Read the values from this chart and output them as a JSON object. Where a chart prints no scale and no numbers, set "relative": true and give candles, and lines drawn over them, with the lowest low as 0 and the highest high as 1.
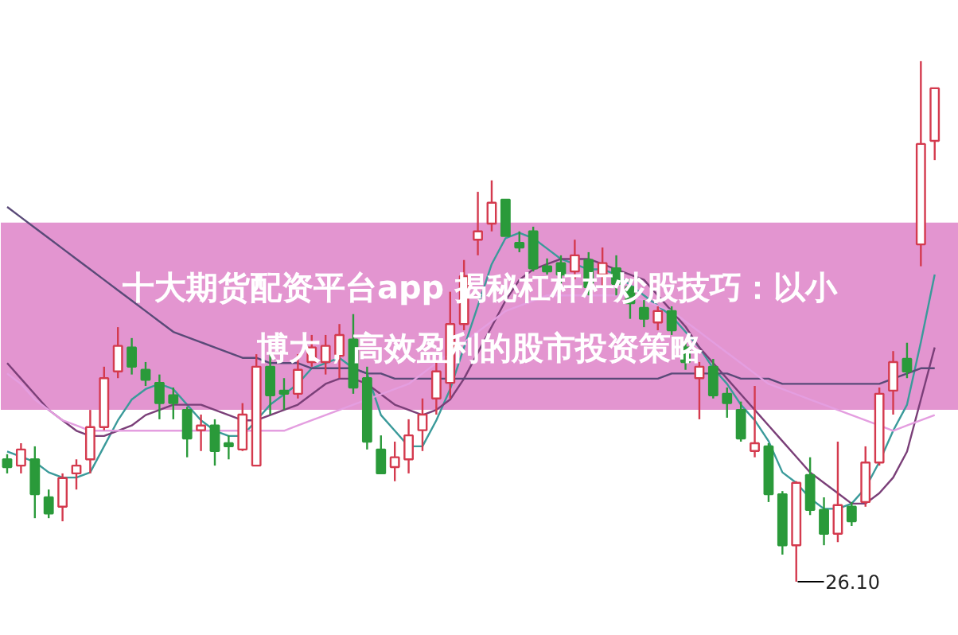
{
  "chart_data": {
    "type": "candlestick",
    "title": "十大期货配资平台app 揭秘杠杆杆炒股技巧：以小博大，高效盈利的股市投资策略",
    "relative": true,
    "categories": [
      null,
      null,
      null,
      null,
      null,
      null,
      null,
      null,
      null,
      null,
      null,
      null,
      null,
      null,
      null,
      null,
      null,
      null,
      null,
      null,
      null,
      null,
      null,
      null,
      null,
      null,
      null,
      null,
      null,
      null,
      null,
      null,
      null,
      null,
      null,
      null,
      null,
      null,
      null,
      null,
      null,
      null,
      null,
      null,
      null,
      null,
      null,
      null,
      null,
      null,
      null,
      null,
      null,
      null,
      null,
      null,
      null,
      null,
      null,
      null,
      null,
      null,
      null,
      null,
      null,
      null,
      null,
      null
    ],
    "ohlc": [
      [
        0.235,
        0.245,
        0.208,
        0.22
      ],
      [
        0.223,
        0.266,
        0.208,
        0.254
      ],
      [
        0.235,
        0.26,
        0.122,
        0.168
      ],
      [
        0.162,
        0.177,
        0.122,
        0.131
      ],
      [
        0.144,
        0.208,
        0.116,
        0.199
      ],
      [
        0.208,
        0.235,
        0.177,
        0.223
      ],
      [
        0.235,
        0.33,
        0.208,
        0.297
      ],
      [
        0.297,
        0.413,
        0.291,
        0.391
      ],
      [
        0.404,
        0.489,
        0.391,
        0.453
      ],
      [
        0.45,
        0.468,
        0.398,
        0.413
      ],
      [
        0.407,
        0.422,
        0.376,
        0.388
      ],
      [
        0.382,
        0.398,
        0.312,
        0.343
      ],
      [
        0.358,
        0.373,
        0.312,
        0.343
      ],
      [
        0.33,
        0.336,
        0.239,
        0.275
      ],
      [
        0.291,
        0.321,
        0.251,
        0.3
      ],
      [
        0.3,
        0.312,
        0.223,
        0.251
      ],
      [
        0.266,
        0.281,
        0.235,
        0.26
      ],
      [
        0.254,
        0.343,
        0.251,
        0.321
      ],
      [
        0.223,
        0.437,
        0.223,
        0.413
      ],
      [
        0.413,
        0.443,
        0.321,
        0.358
      ],
      [
        0.367,
        0.391,
        0.33,
        0.361
      ],
      [
        0.361,
        0.437,
        0.352,
        0.407
      ],
      [
        0.422,
        0.474,
        0.413,
        0.45
      ],
      [
        0.422,
        0.474,
        0.398,
        0.453
      ],
      [
        0.434,
        0.495,
        0.391,
        0.474
      ],
      [
        0.465,
        0.514,
        0.361,
        0.373
      ],
      [
        0.391,
        0.413,
        0.254,
        0.269
      ],
      [
        0.254,
        0.281,
        0.208,
        0.208
      ],
      [
        0.22,
        0.269,
        0.193,
        0.239
      ],
      [
        0.235,
        0.312,
        0.208,
        0.281
      ],
      [
        0.291,
        0.352,
        0.251,
        0.321
      ],
      [
        0.352,
        0.422,
        0.321,
        0.404
      ],
      [
        0.382,
        0.557,
        0.352,
        0.495
      ],
      [
        0.495,
        0.618,
        0.483,
        0.587
      ],
      [
        0.657,
        0.749,
        0.627,
        0.673
      ],
      [
        0.688,
        0.771,
        0.673,
        0.728
      ],
      [
        0.734,
        0.734,
        0.664,
        0.664
      ],
      [
        0.651,
        0.673,
        0.633,
        0.642
      ],
      [
        0.673,
        0.682,
        0.596,
        0.602
      ],
      [
        0.606,
        0.621,
        0.59,
        0.596
      ],
      [
        0.612,
        0.627,
        0.572,
        0.59
      ],
      [
        0.596,
        0.657,
        0.581,
        0.627
      ],
      [
        0.618,
        0.633,
        0.55,
        0.566
      ],
      [
        0.59,
        0.642,
        0.566,
        0.612
      ],
      [
        0.602,
        0.627,
        0.55,
        0.572
      ],
      [
        0.566,
        0.581,
        0.505,
        0.535
      ],
      [
        0.526,
        0.541,
        0.489,
        0.505
      ],
      [
        0.498,
        0.529,
        0.483,
        0.52
      ],
      [
        0.52,
        0.529,
        0.474,
        0.483
      ],
      [
        0.45,
        0.465,
        0.407,
        0.422
      ],
      [
        0.391,
        0.422,
        0.312,
        0.413
      ],
      [
        0.413,
        0.428,
        0.352,
        0.358
      ],
      [
        0.361,
        0.373,
        0.315,
        0.343
      ],
      [
        0.33,
        0.346,
        0.269,
        0.275
      ],
      [
        0.251,
        0.376,
        0.239,
        0.266
      ],
      [
        0.26,
        0.266,
        0.153,
        0.168
      ],
      [
        0.168,
        0.174,
        0.052,
        0.07
      ],
      [
        0.07,
        0.193,
        0.0,
        0.19
      ],
      [
        0.205,
        0.239,
        0.128,
        0.138
      ],
      [
        0.138,
        0.162,
        0.07,
        0.092
      ],
      [
        0.092,
        0.269,
        0.076,
        0.147
      ],
      [
        0.144,
        0.153,
        0.107,
        0.116
      ],
      [
        0.153,
        0.26,
        0.144,
        0.229
      ],
      [
        0.229,
        0.373,
        0.223,
        0.361
      ],
      [
        0.367,
        0.443,
        0.321,
        0.422
      ],
      [
        0.428,
        0.459,
        0.391,
        0.404
      ],
      [
        0.648,
        1.0,
        0.606,
        0.841
      ],
      [
        0.847,
        0.948,
        0.81,
        0.948
      ]
    ],
    "colors": [
      "#2a9a3a",
      "#d43a4e",
      "#2a9a3a",
      "#2a9a3a",
      "#d43a4e",
      "#d43a4e",
      "#d43a4e",
      "#d43a4e",
      "#d43a4e",
      "#2a9a3a",
      "#2a9a3a",
      "#2a9a3a",
      "#2a9a3a",
      "#2a9a3a",
      "#d43a4e",
      "#2a9a3a",
      "#2a9a3a",
      "#d43a4e",
      "#d43a4e",
      "#2a9a3a",
      "#2a9a3a",
      "#d43a4e",
      "#d43a4e",
      "#d43a4e",
      "#d43a4e",
      "#2a9a3a",
      "#2a9a3a",
      "#2a9a3a",
      "#d43a4e",
      "#d43a4e",
      "#d43a4e",
      "#d43a4e",
      "#d43a4e",
      "#d43a4e",
      "#d43a4e",
      "#d43a4e",
      "#2a9a3a",
      "#2a9a3a",
      "#2a9a3a",
      "#2a9a3a",
      "#2a9a3a",
      "#d43a4e",
      "#2a9a3a",
      "#d43a4e",
      "#2a9a3a",
      "#2a9a3a",
      "#2a9a3a",
      "#d43a4e",
      "#2a9a3a",
      "#2a9a3a",
      "#d43a4e",
      "#2a9a3a",
      "#2a9a3a",
      "#2a9a3a",
      "#d43a4e",
      "#2a9a3a",
      "#2a9a3a",
      "#d43a4e",
      "#2a9a3a",
      "#2a9a3a",
      "#d43a4e",
      "#2a9a3a",
      "#d43a4e",
      "#d43a4e",
      "#d43a4e",
      "#2a9a3a",
      "#d43a4e",
      "#d43a4e"
    ],
    "series": [
      {
        "type": "line",
        "color": "#3a9a9a",
        "values": [
          0.25,
          0.24,
          0.23,
          0.21,
          0.2,
          0.2,
          0.21,
          0.26,
          0.31,
          0.35,
          0.37,
          0.38,
          0.37,
          0.34,
          0.31,
          0.29,
          0.28,
          0.28,
          0.31,
          0.34,
          0.36,
          0.38,
          0.41,
          0.42,
          0.43,
          0.41,
          0.4,
          0.32,
          0.29,
          0.26,
          0.26,
          0.31,
          0.37,
          0.45,
          0.53,
          0.61,
          0.66,
          0.67,
          0.66,
          0.64,
          0.62,
          0.61,
          0.6,
          0.6,
          0.59,
          0.57,
          0.55,
          0.53,
          0.51,
          0.48,
          0.45,
          0.41,
          0.38,
          0.34,
          0.31,
          0.27,
          0.21,
          0.19,
          0.16,
          0.14,
          0.14,
          0.15,
          0.18,
          0.23,
          0.29,
          0.34,
          0.46,
          0.59
        ]
      },
      {
        "type": "line",
        "color": "#7a3f78",
        "values": [
          0.42,
          0.39,
          0.36,
          0.33,
          0.31,
          0.29,
          0.28,
          0.28,
          0.29,
          0.3,
          0.32,
          0.33,
          0.34,
          0.34,
          0.34,
          0.33,
          0.32,
          0.31,
          0.31,
          0.32,
          0.33,
          0.34,
          0.36,
          0.38,
          0.39,
          0.39,
          0.38,
          0.36,
          0.34,
          0.33,
          0.32,
          0.33,
          0.35,
          0.39,
          0.44,
          0.49,
          0.54,
          0.58,
          0.6,
          0.61,
          0.62,
          0.62,
          0.62,
          0.61,
          0.6,
          0.59,
          0.58,
          0.55,
          0.52,
          0.49,
          0.45,
          0.42,
          0.39,
          0.36,
          0.33,
          0.3,
          0.27,
          0.24,
          0.21,
          0.19,
          0.17,
          0.15,
          0.15,
          0.17,
          0.2,
          0.25,
          0.35,
          0.45
        ]
      },
      {
        "type": "line",
        "color": "#5a4a78",
        "values": [
          0.72,
          0.7,
          0.68,
          0.66,
          0.64,
          0.62,
          0.6,
          0.58,
          0.56,
          0.54,
          0.52,
          0.5,
          0.48,
          0.47,
          0.46,
          0.45,
          0.44,
          0.43,
          0.43,
          0.42,
          0.42,
          0.42,
          0.41,
          0.41,
          0.41,
          0.41,
          0.4,
          0.4,
          0.39,
          0.39,
          0.39,
          0.39,
          0.39,
          0.39,
          0.39,
          0.39,
          0.39,
          0.39,
          0.39,
          0.39,
          0.39,
          0.39,
          0.39,
          0.39,
          0.39,
          0.39,
          0.39,
          0.39,
          0.4,
          0.4,
          0.4,
          0.4,
          0.4,
          0.39,
          0.39,
          0.39,
          0.38,
          0.38,
          0.38,
          0.38,
          0.38,
          0.38,
          0.38,
          0.38,
          0.39,
          0.4,
          0.41,
          0.41
        ]
      },
      {
        "type": "line",
        "color": "#e49ee0",
        "values": [
          0.4,
          0.38,
          0.35,
          0.33,
          0.31,
          0.3,
          0.29,
          0.29,
          0.29,
          0.29,
          0.29,
          0.29,
          0.29,
          0.29,
          0.29,
          0.29,
          0.29,
          0.29,
          0.29,
          0.29,
          0.29,
          0.3,
          0.31,
          0.32,
          0.33,
          0.34,
          0.35,
          0.36,
          0.37,
          0.38,
          0.4,
          0.42,
          0.44,
          0.46,
          0.48,
          0.5,
          0.52,
          0.53,
          0.54,
          0.55,
          0.55,
          0.55,
          0.55,
          0.55,
          0.55,
          0.55,
          0.54,
          0.53,
          0.52,
          0.5,
          0.48,
          0.46,
          0.44,
          0.42,
          0.4,
          0.38,
          0.37,
          0.36,
          0.35,
          0.34,
          0.33,
          0.32,
          0.31,
          0.3,
          0.29,
          0.3,
          0.31,
          0.32
        ]
      }
    ],
    "bands": [
      {
        "axis": "y",
        "from": 0.33,
        "to": 0.69,
        "color": "#de82c8"
      }
    ],
    "annotations": [
      "26.10"
    ]
  }
}
